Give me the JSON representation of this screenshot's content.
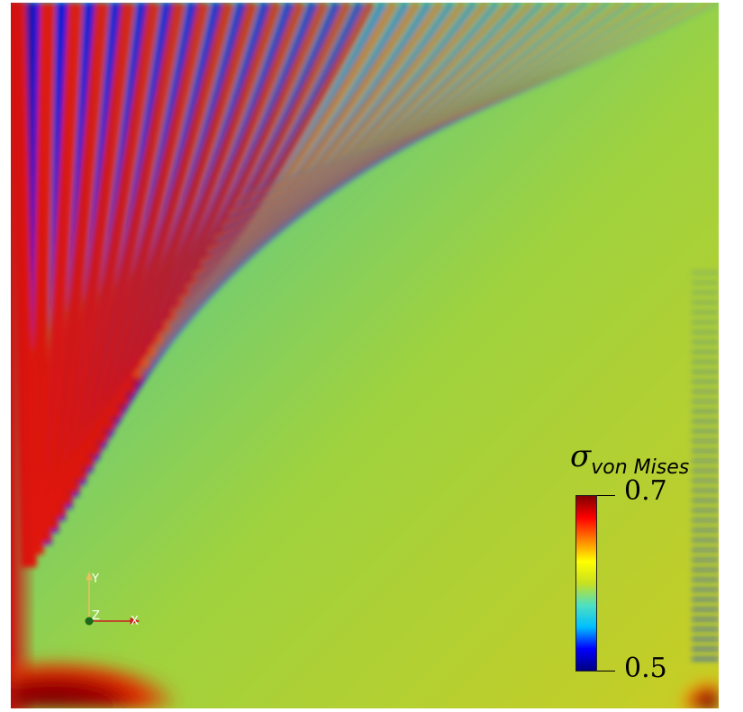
{
  "legend": {
    "title_symbol": "σ",
    "title_subscript": "von Mises",
    "max_label": "0.7",
    "min_label": "0.5",
    "colormap": [
      "#00007f",
      "#0000ff",
      "#00bfff",
      "#4fe0c0",
      "#c8e020",
      "#ffff00",
      "#ff8000",
      "#ff0000",
      "#7f0000"
    ]
  },
  "orientation_axes": {
    "x_label": "X",
    "y_label": "Y",
    "z_label": "Z",
    "x_color": "#cc2020",
    "y_color": "#e8c060",
    "z_color": "#1a6a1a"
  }
}
